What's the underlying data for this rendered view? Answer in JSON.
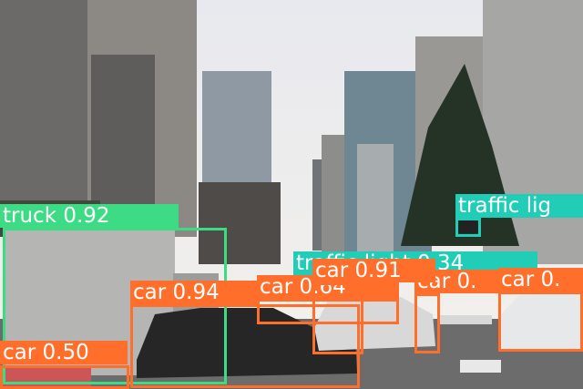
{
  "detections": [
    {
      "label": "truck 0.92"
    },
    {
      "label": "traffic lig"
    },
    {
      "label": "traffic light 0.34"
    },
    {
      "label": "car 0.64"
    },
    {
      "label": "car 0."
    },
    {
      "label": "car 0."
    },
    {
      "label": "car 0.91"
    },
    {
      "label": "car 0.94"
    },
    {
      "label": "car 0.50"
    }
  ]
}
